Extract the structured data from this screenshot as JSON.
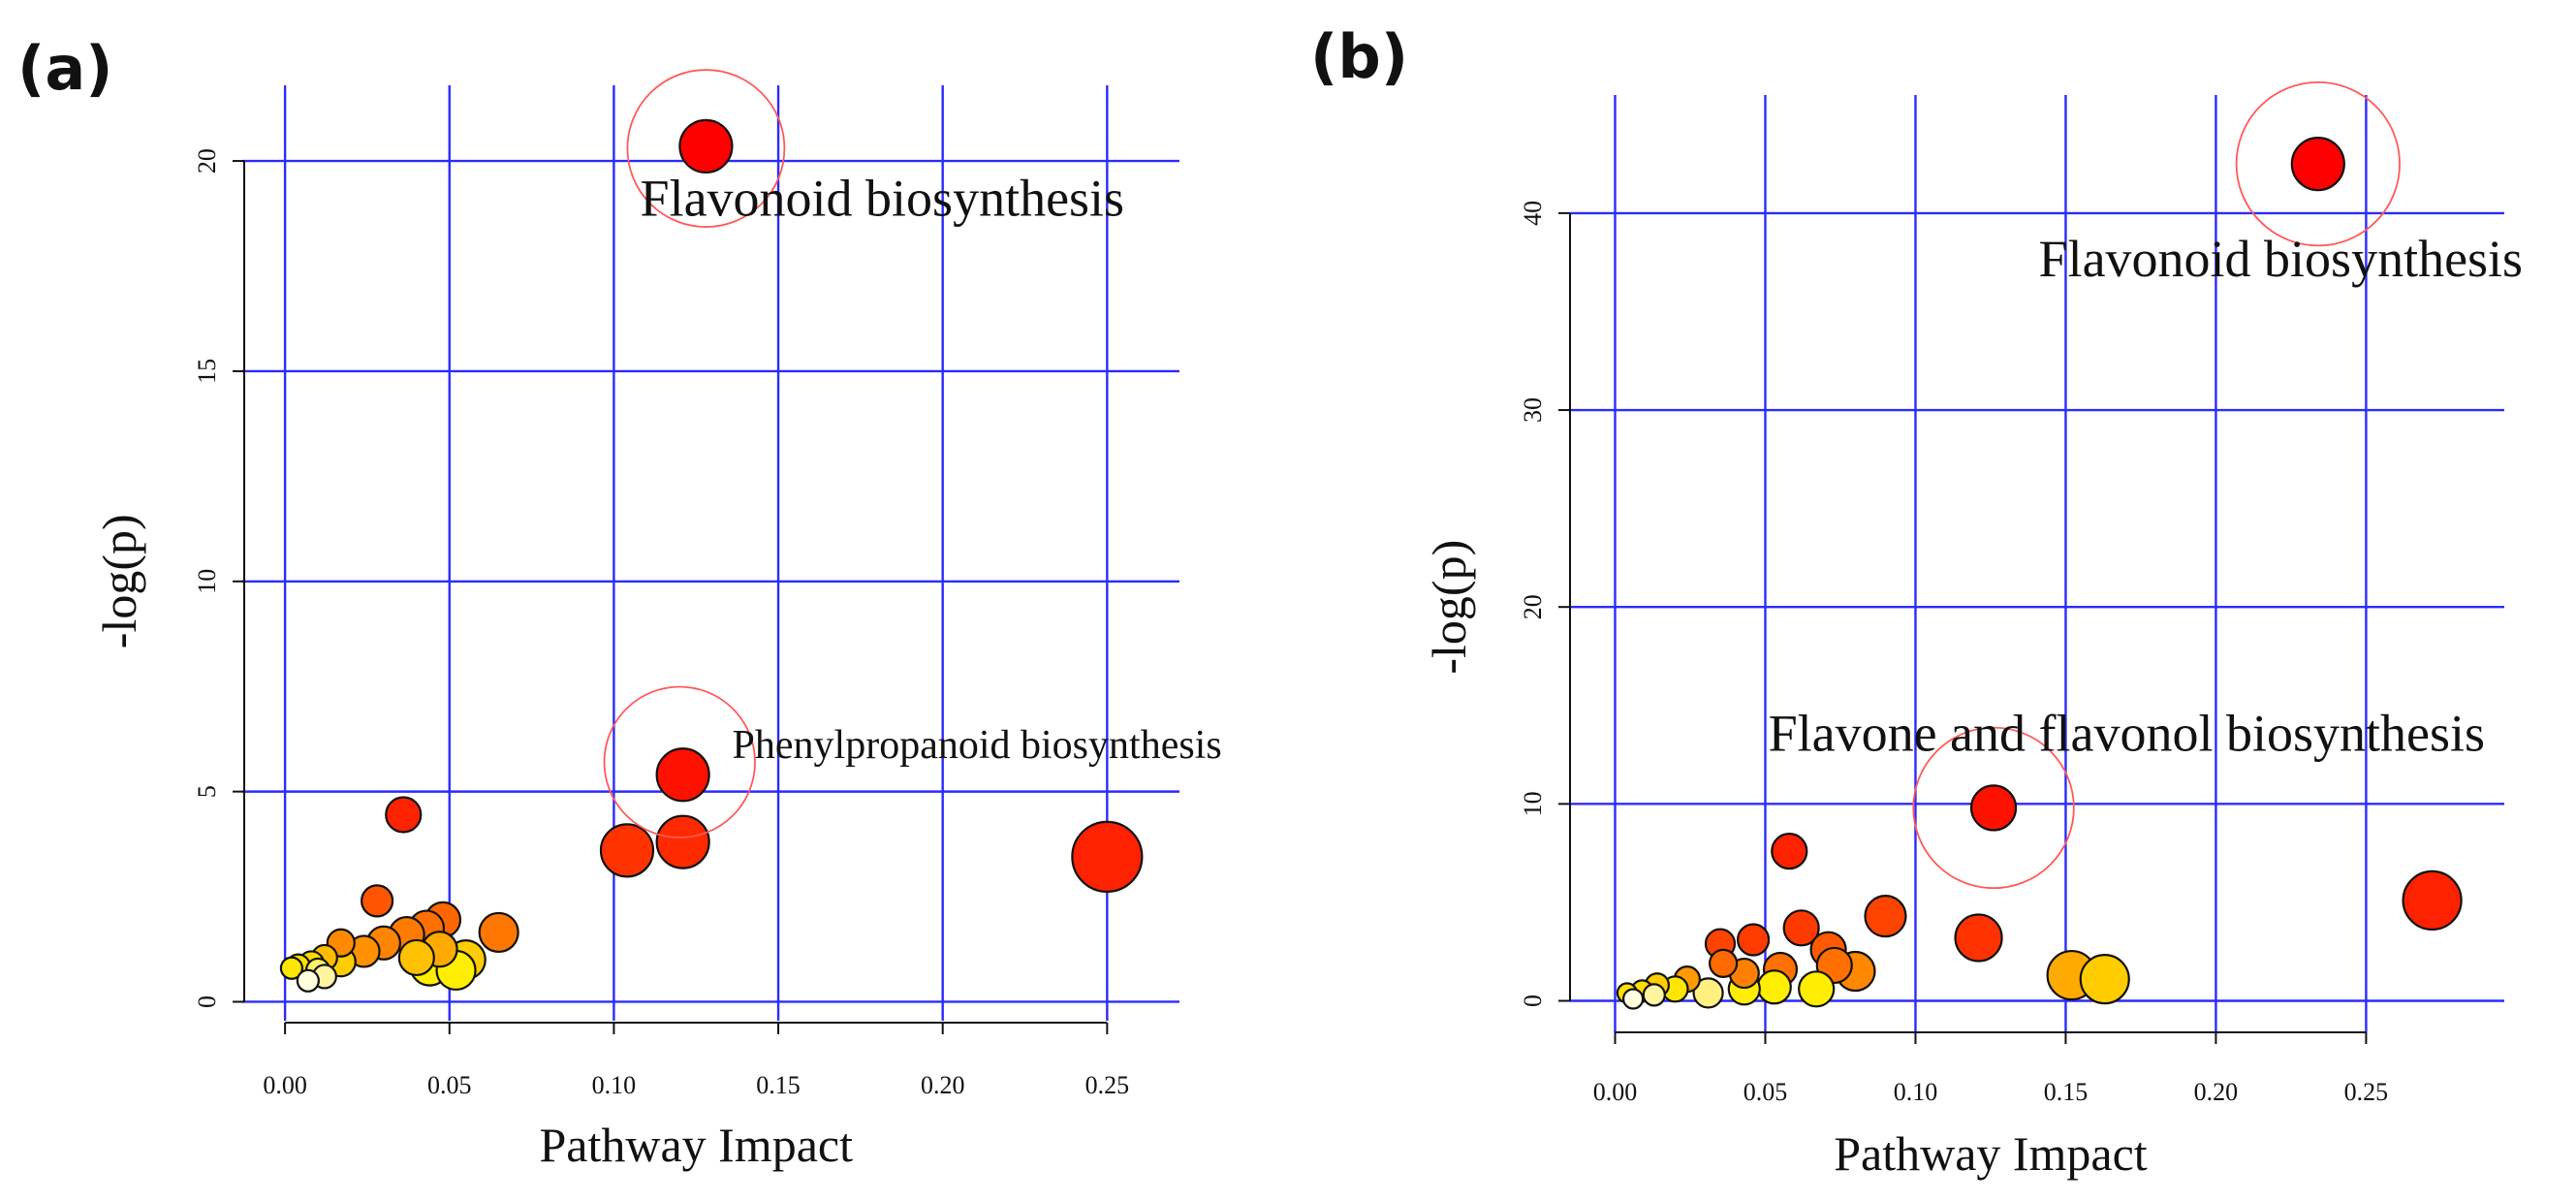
{
  "chart_data": [
    {
      "type": "scatter",
      "panel_label": "(a)",
      "xlabel": "Pathway Impact",
      "ylabel": "-log(p)",
      "xticks": [
        "0.00",
        "0.05",
        "0.10",
        "0.15",
        "0.20",
        "0.25"
      ],
      "yticks": [
        "0",
        "5",
        "10",
        "15",
        "20"
      ],
      "xtick_values": [
        0,
        0.05,
        0.1,
        0.15,
        0.2,
        0.25
      ],
      "ytick_values": [
        0,
        5,
        10,
        15,
        20
      ],
      "xlim": [
        -0.013,
        0.272
      ],
      "ylim": [
        -0.45,
        21.8
      ],
      "grid_x": [
        0,
        0.05,
        0.1,
        0.15,
        0.2,
        0.25
      ],
      "grid_y": [
        0,
        5,
        10,
        15,
        20
      ],
      "annotations": [
        {
          "text": "Flavonoid biosynthesis",
          "x": 0.108,
          "y": 18.7,
          "size": "large"
        },
        {
          "text": "Phenylpropanoid biosynthesis",
          "x": 0.136,
          "y": 5.8,
          "size": "small"
        }
      ],
      "highlights": [
        {
          "x": 0.128,
          "y": 20.3,
          "r": 1.25
        },
        {
          "x": 0.12,
          "y": 5.7,
          "r": 1.2
        }
      ],
      "points": [
        {
          "x": 0.25,
          "y": 3.45,
          "r": 36,
          "color": "#ff2200"
        },
        {
          "x": 0.128,
          "y": 20.35,
          "r": 27,
          "color": "#ff0000"
        },
        {
          "x": 0.121,
          "y": 5.4,
          "r": 27,
          "color": "#ff1100"
        },
        {
          "x": 0.121,
          "y": 3.8,
          "r": 27,
          "color": "#ff2a00"
        },
        {
          "x": 0.104,
          "y": 3.6,
          "r": 27,
          "color": "#ff3300"
        },
        {
          "x": 0.036,
          "y": 4.45,
          "r": 18,
          "color": "#ff2200"
        },
        {
          "x": 0.065,
          "y": 1.65,
          "r": 20,
          "color": "#ff7700"
        },
        {
          "x": 0.028,
          "y": 2.4,
          "r": 16,
          "color": "#ff5500"
        },
        {
          "x": 0.048,
          "y": 1.95,
          "r": 18,
          "color": "#ff6600"
        },
        {
          "x": 0.043,
          "y": 1.75,
          "r": 18,
          "color": "#ff7000"
        },
        {
          "x": 0.037,
          "y": 1.6,
          "r": 18,
          "color": "#ff7a00"
        },
        {
          "x": 0.03,
          "y": 1.4,
          "r": 17,
          "color": "#ff8400"
        },
        {
          "x": 0.024,
          "y": 1.2,
          "r": 16,
          "color": "#ff9000"
        },
        {
          "x": 0.017,
          "y": 1.4,
          "r": 14,
          "color": "#ff8a00"
        },
        {
          "x": 0.047,
          "y": 1.25,
          "r": 18,
          "color": "#ffaa00"
        },
        {
          "x": 0.055,
          "y": 1.0,
          "r": 20,
          "color": "#ffcc00"
        },
        {
          "x": 0.04,
          "y": 1.05,
          "r": 18,
          "color": "#ffc000"
        },
        {
          "x": 0.044,
          "y": 0.85,
          "r": 20,
          "color": "#ffee00"
        },
        {
          "x": 0.052,
          "y": 0.75,
          "r": 20,
          "color": "#ffee00"
        },
        {
          "x": 0.017,
          "y": 0.95,
          "r": 15,
          "color": "#ffcc00"
        },
        {
          "x": 0.012,
          "y": 1.05,
          "r": 13,
          "color": "#ffbb00"
        },
        {
          "x": 0.008,
          "y": 0.9,
          "r": 13,
          "color": "#ffdd00"
        },
        {
          "x": 0.004,
          "y": 0.85,
          "r": 12,
          "color": "#ffe000"
        },
        {
          "x": 0.002,
          "y": 0.8,
          "r": 11,
          "color": "#ffe600"
        },
        {
          "x": 0.01,
          "y": 0.75,
          "r": 12,
          "color": "#fff06a"
        },
        {
          "x": 0.012,
          "y": 0.6,
          "r": 12,
          "color": "#fff5a0"
        },
        {
          "x": 0.007,
          "y": 0.5,
          "r": 11,
          "color": "#ffffe0"
        }
      ]
    },
    {
      "type": "scatter",
      "panel_label": "(b)",
      "xlabel": "Pathway Impact",
      "ylabel": "-log(p)",
      "xticks": [
        "0.00",
        "0.05",
        "0.10",
        "0.15",
        "0.20",
        "0.25"
      ],
      "yticks": [
        "0",
        "10",
        "20",
        "30",
        "40"
      ],
      "xtick_values": [
        0,
        0.05,
        0.1,
        0.15,
        0.2,
        0.25
      ],
      "ytick_values": [
        0,
        10,
        20,
        30,
        40
      ],
      "xlim": [
        -0.015,
        0.296
      ],
      "ylim": [
        -1.6,
        46.0
      ],
      "grid_x": [
        0,
        0.05,
        0.1,
        0.15,
        0.2,
        0.25
      ],
      "grid_y": [
        0,
        10,
        20,
        30,
        40
      ],
      "annotations": [
        {
          "text": "Flavonoid biosynthesis",
          "x": 0.141,
          "y": 36.8,
          "size": "large"
        },
        {
          "text": "Flavone and flavonol biosynthesis",
          "x": 0.051,
          "y": 12.7,
          "size": "large"
        }
      ],
      "highlights": [
        {
          "x": 0.234,
          "y": 42.5,
          "r": 1.3
        },
        {
          "x": 0.126,
          "y": 9.8,
          "r": 1.5
        }
      ],
      "points": [
        {
          "x": 0.234,
          "y": 42.5,
          "r": 27,
          "color": "#ff0000"
        },
        {
          "x": 0.272,
          "y": 5.1,
          "r": 30,
          "color": "#ff2200"
        },
        {
          "x": 0.126,
          "y": 9.8,
          "r": 23,
          "color": "#ff1100"
        },
        {
          "x": 0.058,
          "y": 7.6,
          "r": 18,
          "color": "#ff2200"
        },
        {
          "x": 0.121,
          "y": 3.2,
          "r": 24,
          "color": "#ff3300"
        },
        {
          "x": 0.09,
          "y": 4.3,
          "r": 21,
          "color": "#ff4400"
        },
        {
          "x": 0.062,
          "y": 3.7,
          "r": 18,
          "color": "#ff3a00"
        },
        {
          "x": 0.071,
          "y": 2.6,
          "r": 18,
          "color": "#ff5a00"
        },
        {
          "x": 0.046,
          "y": 3.1,
          "r": 16,
          "color": "#ff3c00"
        },
        {
          "x": 0.035,
          "y": 2.9,
          "r": 15,
          "color": "#ff4400"
        },
        {
          "x": 0.08,
          "y": 1.5,
          "r": 20,
          "color": "#ff8800"
        },
        {
          "x": 0.073,
          "y": 1.8,
          "r": 18,
          "color": "#ff7000"
        },
        {
          "x": 0.055,
          "y": 1.6,
          "r": 17,
          "color": "#ff7000"
        },
        {
          "x": 0.043,
          "y": 1.4,
          "r": 15,
          "color": "#ff8000"
        },
        {
          "x": 0.036,
          "y": 1.9,
          "r": 14,
          "color": "#ff6a00"
        },
        {
          "x": 0.024,
          "y": 1.1,
          "r": 13,
          "color": "#ff9a00"
        },
        {
          "x": 0.152,
          "y": 1.3,
          "r": 25,
          "color": "#ffaa00"
        },
        {
          "x": 0.163,
          "y": 1.1,
          "r": 25,
          "color": "#ffcc00"
        },
        {
          "x": 0.067,
          "y": 0.6,
          "r": 18,
          "color": "#ffee00"
        },
        {
          "x": 0.053,
          "y": 0.7,
          "r": 17,
          "color": "#ffee00"
        },
        {
          "x": 0.043,
          "y": 0.6,
          "r": 16,
          "color": "#ffee00"
        },
        {
          "x": 0.031,
          "y": 0.4,
          "r": 15,
          "color": "#fff080"
        },
        {
          "x": 0.02,
          "y": 0.6,
          "r": 13,
          "color": "#ffe600"
        },
        {
          "x": 0.014,
          "y": 0.8,
          "r": 12,
          "color": "#ffcc00"
        },
        {
          "x": 0.009,
          "y": 0.5,
          "r": 11,
          "color": "#ffdd00"
        },
        {
          "x": 0.004,
          "y": 0.4,
          "r": 10,
          "color": "#ffe000"
        },
        {
          "x": 0.013,
          "y": 0.3,
          "r": 11,
          "color": "#fff5a0"
        },
        {
          "x": 0.006,
          "y": 0.1,
          "r": 10,
          "color": "#ffffe0"
        }
      ]
    }
  ]
}
